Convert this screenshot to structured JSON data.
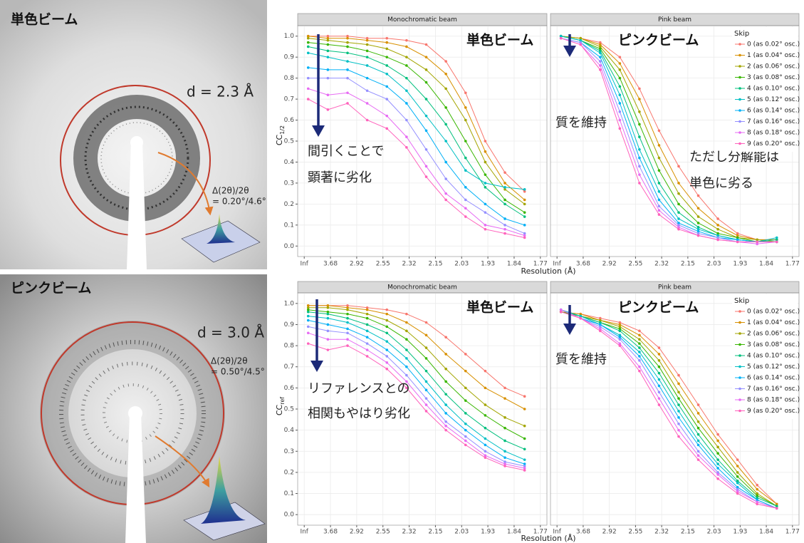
{
  "images": [
    {
      "label": "単色ビーム",
      "d_label": "d = 2.3 Å",
      "delta_label": "Δ(2θ)/2θ",
      "delta_value": "= 0.20°/4.6°"
    },
    {
      "label": "ピンクビーム",
      "d_label": "d = 3.0 Å",
      "delta_label": "Δ(2θ)/2θ",
      "delta_value": "= 0.50°/4.5°"
    }
  ],
  "chart_data": [
    {
      "type": "line",
      "y_label": "CC",
      "y_label_sub": "1/2",
      "x_label": "Resolution (Å)",
      "legend_title": "Skip",
      "legend_position": "top-right",
      "grid": true,
      "x": [
        0.15,
        0.9,
        1.65,
        2.4,
        3.15,
        3.9,
        4.65,
        5.4,
        6.15,
        6.9,
        7.65,
        8.4
      ],
      "xlim": [
        -0.25,
        9.25
      ],
      "xticks": [
        {
          "value": 0,
          "label": "Inf"
        },
        {
          "value": 1,
          "label": "3.68"
        },
        {
          "value": 2,
          "label": "2.92"
        },
        {
          "value": 3,
          "label": "2.55"
        },
        {
          "value": 4,
          "label": "2.32"
        },
        {
          "value": 5,
          "label": "2.15"
        },
        {
          "value": 6,
          "label": "2.03"
        },
        {
          "value": 7,
          "label": "1.93"
        },
        {
          "value": 8,
          "label": "1.84"
        },
        {
          "value": 9,
          "label": "1.77"
        }
      ],
      "ylim": [
        -0.05,
        1.05
      ],
      "yticks": [
        {
          "value": 0,
          "label": "0.0"
        },
        0.1,
        0.2,
        0.3,
        0.4,
        0.5,
        0.6,
        0.7,
        0.8,
        0.9,
        {
          "value": 1,
          "label": "1.0"
        }
      ],
      "series": [
        {
          "name": "0 (as 0.02° osc.)",
          "color": "#F8766D"
        },
        {
          "name": "1 (as 0.04° osc.)",
          "color": "#D89000"
        },
        {
          "name": "2 (as 0.06° osc.)",
          "color": "#A3A500"
        },
        {
          "name": "3 (as 0.08° osc.)",
          "color": "#39B600"
        },
        {
          "name": "4 (as 0.10° osc.)",
          "color": "#00BF7D"
        },
        {
          "name": "5 (as 0.12° osc.)",
          "color": "#00BFC4"
        },
        {
          "name": "6 (as 0.14° osc.)",
          "color": "#00B0F6"
        },
        {
          "name": "7 (as 0.16° osc.)",
          "color": "#9590FF"
        },
        {
          "name": "8 (as 0.18° osc.)",
          "color": "#E76BF3"
        },
        {
          "name": "9 (as 0.20° osc.)",
          "color": "#FF62BC"
        }
      ],
      "facets": [
        {
          "title": "Monochromatic beam",
          "beam_label": "単色ビーム",
          "notes": [
            "間引くことで",
            "顕著に劣化"
          ],
          "values": [
            [
              1.0,
              1.0,
              1.0,
              0.99,
              0.99,
              0.98,
              0.96,
              0.88,
              0.73,
              0.5,
              0.35,
              0.26
            ],
            [
              1.0,
              0.99,
              0.99,
              0.98,
              0.97,
              0.95,
              0.9,
              0.82,
              0.66,
              0.45,
              0.3,
              0.22
            ],
            [
              0.99,
              0.98,
              0.97,
              0.96,
              0.94,
              0.9,
              0.84,
              0.75,
              0.6,
              0.4,
              0.27,
              0.2
            ],
            [
              0.97,
              0.96,
              0.95,
              0.93,
              0.9,
              0.86,
              0.78,
              0.66,
              0.5,
              0.34,
              0.22,
              0.16
            ],
            [
              0.95,
              0.93,
              0.92,
              0.9,
              0.86,
              0.8,
              0.7,
              0.58,
              0.42,
              0.28,
              0.2,
              0.14
            ],
            [
              0.92,
              0.9,
              0.88,
              0.86,
              0.82,
              0.74,
              0.62,
              0.5,
              0.36,
              0.3,
              0.28,
              0.27
            ],
            [
              0.85,
              0.84,
              0.84,
              0.8,
              0.76,
              0.68,
              0.55,
              0.4,
              0.28,
              0.2,
              0.13,
              0.1
            ],
            [
              0.8,
              0.8,
              0.8,
              0.74,
              0.7,
              0.6,
              0.46,
              0.32,
              0.22,
              0.16,
              0.1,
              0.06
            ],
            [
              0.75,
              0.72,
              0.73,
              0.68,
              0.62,
              0.52,
              0.38,
              0.25,
              0.18,
              0.1,
              0.08,
              0.05
            ],
            [
              0.7,
              0.65,
              0.68,
              0.6,
              0.56,
              0.47,
              0.33,
              0.22,
              0.14,
              0.08,
              0.06,
              0.04
            ]
          ]
        },
        {
          "title": "Pink beam",
          "beam_label": "ピンクビーム",
          "notes": [
            "質を維持",
            "ただし分解能は",
            "単色に劣る"
          ],
          "values": [
            [
              1.0,
              0.99,
              0.97,
              0.9,
              0.75,
              0.55,
              0.38,
              0.24,
              0.13,
              0.06,
              0.03,
              0.03
            ],
            [
              1.0,
              0.99,
              0.96,
              0.87,
              0.7,
              0.48,
              0.3,
              0.18,
              0.1,
              0.05,
              0.03,
              0.03
            ],
            [
              1.0,
              0.99,
              0.95,
              0.84,
              0.64,
              0.42,
              0.25,
              0.14,
              0.08,
              0.04,
              0.03,
              0.02
            ],
            [
              1.0,
              0.98,
              0.94,
              0.8,
              0.58,
              0.36,
              0.2,
              0.11,
              0.06,
              0.04,
              0.02,
              0.02
            ],
            [
              1.0,
              0.98,
              0.93,
              0.76,
              0.52,
              0.3,
              0.16,
              0.09,
              0.05,
              0.03,
              0.02,
              0.03
            ],
            [
              1.0,
              0.98,
              0.92,
              0.72,
              0.46,
              0.26,
              0.13,
              0.08,
              0.05,
              0.03,
              0.02,
              0.04
            ],
            [
              0.99,
              0.97,
              0.9,
              0.68,
              0.42,
              0.22,
              0.11,
              0.07,
              0.04,
              0.03,
              0.02,
              0.02
            ],
            [
              0.99,
              0.97,
              0.88,
              0.64,
              0.38,
              0.19,
              0.1,
              0.06,
              0.04,
              0.02,
              0.02,
              0.02
            ],
            [
              0.99,
              0.96,
              0.86,
              0.6,
              0.34,
              0.17,
              0.09,
              0.05,
              0.03,
              0.02,
              0.01,
              0.02
            ],
            [
              0.99,
              0.96,
              0.84,
              0.56,
              0.3,
              0.15,
              0.08,
              0.05,
              0.03,
              0.02,
              0.02,
              0.02
            ]
          ]
        }
      ]
    },
    {
      "type": "line",
      "y_label": "CC",
      "y_label_sub": "ref",
      "x_label": "Resolution (Å)",
      "legend_title": "Skip",
      "legend_position": "top-right",
      "grid": true,
      "x": [
        0.15,
        0.9,
        1.65,
        2.4,
        3.15,
        3.9,
        4.65,
        5.4,
        6.15,
        6.9,
        7.65,
        8.4
      ],
      "xlim": [
        -0.25,
        9.25
      ],
      "xticks": [
        {
          "value": 0,
          "label": "Inf"
        },
        {
          "value": 1,
          "label": "3.68"
        },
        {
          "value": 2,
          "label": "2.92"
        },
        {
          "value": 3,
          "label": "2.55"
        },
        {
          "value": 4,
          "label": "2.32"
        },
        {
          "value": 5,
          "label": "2.15"
        },
        {
          "value": 6,
          "label": "2.03"
        },
        {
          "value": 7,
          "label": "1.93"
        },
        {
          "value": 8,
          "label": "1.84"
        },
        {
          "value": 9,
          "label": "1.77"
        }
      ],
      "ylim": [
        -0.05,
        1.05
      ],
      "yticks": [
        {
          "value": 0,
          "label": "0.0"
        },
        0.1,
        0.2,
        0.3,
        0.4,
        0.5,
        0.6,
        0.7,
        0.8,
        0.9,
        {
          "value": 1,
          "label": "1.0"
        }
      ],
      "series": [
        {
          "name": "0 (as 0.02° osc.)",
          "color": "#F8766D"
        },
        {
          "name": "1 (as 0.04° osc.)",
          "color": "#D89000"
        },
        {
          "name": "2 (as 0.06° osc.)",
          "color": "#A3A500"
        },
        {
          "name": "3 (as 0.08° osc.)",
          "color": "#39B600"
        },
        {
          "name": "4 (as 0.10° osc.)",
          "color": "#00BF7D"
        },
        {
          "name": "5 (as 0.12° osc.)",
          "color": "#00BFC4"
        },
        {
          "name": "6 (as 0.14° osc.)",
          "color": "#00B0F6"
        },
        {
          "name": "7 (as 0.16° osc.)",
          "color": "#9590FF"
        },
        {
          "name": "8 (as 0.18° osc.)",
          "color": "#E76BF3"
        },
        {
          "name": "9 (as 0.20° osc.)",
          "color": "#FF62BC"
        }
      ],
      "facets": [
        {
          "title": "Monochromatic beam",
          "beam_label": "単色ビーム",
          "notes": [
            "リファレンスとの",
            "相関もやはり劣化"
          ],
          "values": [
            [
              0.99,
              0.99,
              0.99,
              0.98,
              0.97,
              0.95,
              0.91,
              0.84,
              0.76,
              0.68,
              0.6,
              0.56
            ],
            [
              0.99,
              0.99,
              0.98,
              0.97,
              0.95,
              0.91,
              0.85,
              0.76,
              0.68,
              0.6,
              0.55,
              0.5
            ],
            [
              0.98,
              0.98,
              0.97,
              0.95,
              0.92,
              0.87,
              0.79,
              0.69,
              0.6,
              0.52,
              0.46,
              0.42
            ],
            [
              0.97,
              0.96,
              0.95,
              0.93,
              0.89,
              0.83,
              0.74,
              0.63,
              0.54,
              0.47,
              0.41,
              0.36
            ],
            [
              0.96,
              0.95,
              0.93,
              0.9,
              0.86,
              0.78,
              0.68,
              0.57,
              0.48,
              0.41,
              0.35,
              0.31
            ],
            [
              0.94,
              0.93,
              0.91,
              0.87,
              0.82,
              0.74,
              0.63,
              0.52,
              0.43,
              0.36,
              0.3,
              0.26
            ],
            [
              0.92,
              0.9,
              0.88,
              0.84,
              0.78,
              0.7,
              0.59,
              0.48,
              0.4,
              0.33,
              0.27,
              0.24
            ],
            [
              0.89,
              0.87,
              0.86,
              0.81,
              0.75,
              0.66,
              0.55,
              0.44,
              0.37,
              0.3,
              0.25,
              0.23
            ],
            [
              0.86,
              0.83,
              0.83,
              0.78,
              0.72,
              0.63,
              0.52,
              0.42,
              0.35,
              0.28,
              0.24,
              0.22
            ],
            [
              0.81,
              0.78,
              0.8,
              0.75,
              0.69,
              0.6,
              0.49,
              0.4,
              0.33,
              0.27,
              0.23,
              0.21
            ]
          ]
        },
        {
          "title": "Pink beam",
          "beam_label": "ピンクビーム",
          "notes": [
            "質を維持"
          ],
          "values": [
            [
              0.96,
              0.95,
              0.93,
              0.91,
              0.87,
              0.79,
              0.66,
              0.52,
              0.38,
              0.26,
              0.14,
              0.05
            ],
            [
              0.96,
              0.95,
              0.92,
              0.9,
              0.85,
              0.76,
              0.62,
              0.48,
              0.35,
              0.23,
              0.12,
              0.05
            ],
            [
              0.96,
              0.94,
              0.92,
              0.89,
              0.83,
              0.73,
              0.58,
              0.44,
              0.32,
              0.2,
              0.1,
              0.04
            ],
            [
              0.96,
              0.94,
              0.91,
              0.88,
              0.81,
              0.7,
              0.55,
              0.41,
              0.29,
              0.18,
              0.09,
              0.04
            ],
            [
              0.97,
              0.94,
              0.91,
              0.87,
              0.79,
              0.67,
              0.52,
              0.38,
              0.26,
              0.16,
              0.08,
              0.04
            ],
            [
              0.97,
              0.94,
              0.9,
              0.85,
              0.77,
              0.64,
              0.49,
              0.35,
              0.24,
              0.15,
              0.07,
              0.03
            ],
            [
              0.97,
              0.93,
              0.9,
              0.84,
              0.75,
              0.61,
              0.46,
              0.33,
              0.22,
              0.13,
              0.07,
              0.03
            ],
            [
              0.97,
              0.93,
              0.89,
              0.83,
              0.73,
              0.58,
              0.43,
              0.3,
              0.2,
              0.12,
              0.06,
              0.03
            ],
            [
              0.97,
              0.93,
              0.88,
              0.81,
              0.7,
              0.55,
              0.4,
              0.28,
              0.19,
              0.11,
              0.06,
              0.03
            ],
            [
              0.96,
              0.93,
              0.87,
              0.8,
              0.68,
              0.52,
              0.37,
              0.26,
              0.17,
              0.1,
              0.05,
              0.03
            ]
          ]
        }
      ]
    }
  ]
}
